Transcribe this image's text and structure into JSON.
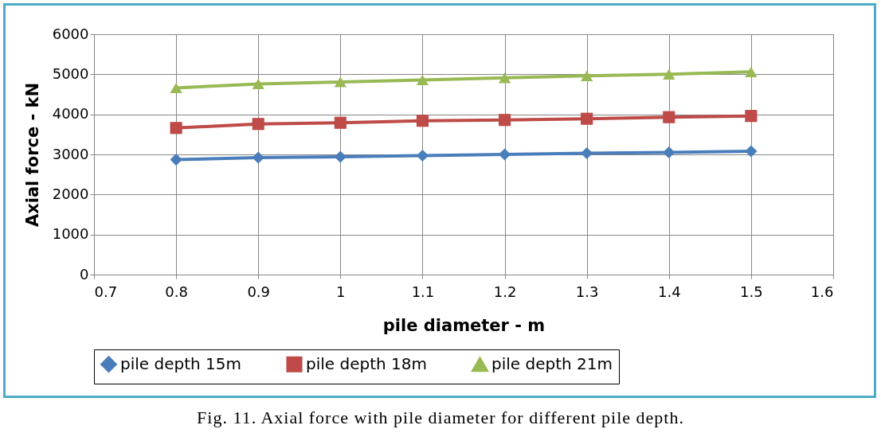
{
  "chart_data": {
    "type": "line",
    "xlabel": "pile diameter - m",
    "ylabel": "Axial force - kN",
    "x": [
      0.8,
      0.9,
      1.0,
      1.1,
      1.2,
      1.3,
      1.4,
      1.5
    ],
    "series": [
      {
        "name": "pile depth 15m",
        "color": "#4a7ebb",
        "marker": "diamond",
        "values": [
          2870,
          2920,
          2940,
          2970,
          3000,
          3030,
          3050,
          3080
        ]
      },
      {
        "name": "pile depth 18m",
        "color": "#be4b48",
        "marker": "square",
        "values": [
          3660,
          3760,
          3790,
          3840,
          3860,
          3890,
          3930,
          3960
        ]
      },
      {
        "name": "pile depth 21m",
        "color": "#98b954",
        "marker": "triangle",
        "values": [
          4660,
          4760,
          4810,
          4860,
          4910,
          4960,
          5000,
          5060
        ]
      }
    ],
    "xlim": [
      0.7,
      1.6
    ],
    "xticks": [
      0.7,
      0.8,
      0.9,
      1,
      1.1,
      1.2,
      1.3,
      1.4,
      1.5,
      1.6
    ],
    "ylim": [
      0,
      6000
    ],
    "yticks": [
      0,
      1000,
      2000,
      3000,
      4000,
      5000,
      6000
    ],
    "grid": true,
    "legend": "bottom",
    "line_style": "solid",
    "annotations": [
      "Fig. 11. Axial force with pile diameter for different pile depth."
    ]
  }
}
